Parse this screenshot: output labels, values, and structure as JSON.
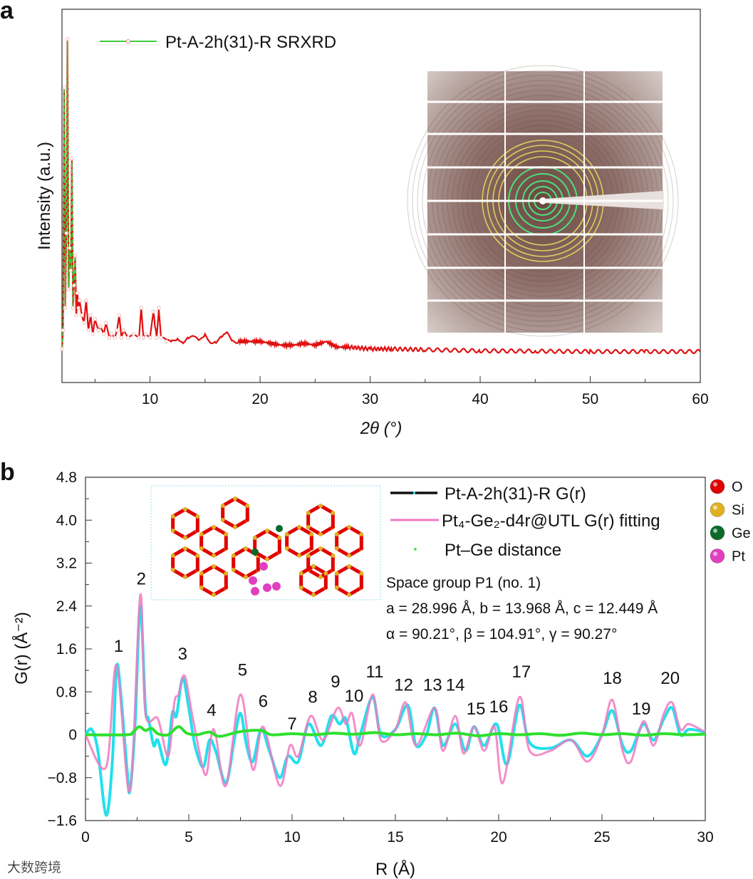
{
  "panels": {
    "a": "a",
    "b": "b"
  },
  "colors": {
    "xrd_line": "#e01010",
    "xrd_marker": "#f2b8b8",
    "xrd_legend": "#3ecf3e",
    "exp": "#22e0ee",
    "exp_legend": "#111111",
    "fit": "#f07ac0",
    "ptge": "#2ee02e",
    "O": "#e00000",
    "Si": "#e0b020",
    "Ge": "#0a6a2a",
    "Pt": "#e040c0"
  },
  "watermark": "大数跨境",
  "chart_data": [
    {
      "type": "line",
      "panel": "a",
      "title": "",
      "xlabel": "2θ (°)",
      "ylabel": "Intensity (a.u.)",
      "xlim": [
        2,
        60
      ],
      "ylim": [
        0,
        100
      ],
      "xticks": [
        10,
        20,
        30,
        40,
        50,
        60
      ],
      "xminor": [
        5,
        15,
        25,
        35,
        45,
        55
      ],
      "legend": {
        "label": "Pt-A-2h(31)-R SRXRD",
        "placement": "top-left"
      },
      "inset": "2D SRXRD detector image (top-right)",
      "series": [
        {
          "name": "Pt-A-2h(31)-R SRXRD",
          "x": [
            2.0,
            2.1,
            2.2,
            2.3,
            2.4,
            2.5,
            2.6,
            2.7,
            2.8,
            2.9,
            3.0,
            3.1,
            3.2,
            3.3,
            3.4,
            3.5,
            3.6,
            3.8,
            4.0,
            4.2,
            4.4,
            4.6,
            4.8,
            5.0,
            5.3,
            5.5,
            5.8,
            6.0,
            6.3,
            6.5,
            6.8,
            7.0,
            7.2,
            7.4,
            7.6,
            8.0,
            8.5,
            9.0,
            9.2,
            9.4,
            9.6,
            10.0,
            10.3,
            10.6,
            10.8,
            11.0,
            11.5,
            12,
            12.5,
            13,
            13.5,
            14,
            14.5,
            15,
            15.5,
            16,
            16.5,
            17,
            17.5,
            18,
            19,
            20,
            21,
            22,
            23,
            24,
            25,
            26,
            27,
            28,
            30,
            32,
            35,
            40,
            45,
            50,
            55,
            60
          ],
          "y": [
            9,
            14,
            79,
            20,
            40,
            92,
            25,
            36,
            30,
            60,
            20,
            26,
            34,
            18,
            24,
            20,
            22,
            18,
            16,
            22,
            14,
            18,
            13,
            17,
            14,
            15,
            13,
            16,
            12,
            13,
            12,
            14,
            18,
            12,
            14,
            12,
            13,
            12,
            20,
            12,
            13,
            12,
            19,
            12,
            20,
            12,
            11,
            11,
            12,
            11,
            12,
            12,
            11,
            13,
            11,
            11,
            12,
            13,
            11,
            11,
            11,
            11,
            10.5,
            10,
            10,
            10.5,
            10,
            11,
            9.5,
            9.5,
            9,
            9,
            8.8,
            8.5,
            8.4,
            8.3,
            8.3,
            8.3
          ]
        }
      ]
    },
    {
      "type": "line",
      "panel": "b",
      "xlabel": "R (Å)",
      "ylabel": "G(r) (Å⁻²)",
      "xlim": [
        0,
        30
      ],
      "ylim": [
        -1.6,
        4.8
      ],
      "xticks": [
        0,
        5,
        10,
        15,
        20,
        25,
        30
      ],
      "yticks": [
        -1.6,
        -0.8,
        0,
        0.8,
        1.6,
        2.4,
        3.2,
        4.0,
        4.8
      ],
      "ytick_labels": [
        "−1.6",
        "−0.8",
        "0",
        "0.8",
        "1.6",
        "2.4",
        "3.2",
        "4.0",
        "4.8"
      ],
      "legend": [
        {
          "label": "Pt-A-2h(31)-R G(r)",
          "style": "line"
        },
        {
          "label": "Pt₄-Ge₂-d4r@UTL G(r) fitting",
          "style": "line"
        },
        {
          "label": "Pt–Ge distance",
          "style": "dot"
        }
      ],
      "info": [
        "Space group P1 (no. 1)",
        "a = 28.996 Å, b = 13.968 Å, c = 12.449 Å",
        "α = 90.21°, β = 104.91°, γ = 90.27°"
      ],
      "atoms": [
        "O",
        "Si",
        "Ge",
        "Pt"
      ],
      "peak_labels": [
        {
          "text": "1",
          "x": 1.6,
          "y": 1.55
        },
        {
          "text": "2",
          "x": 2.7,
          "y": 2.8
        },
        {
          "text": "3",
          "x": 4.7,
          "y": 1.4
        },
        {
          "text": "4",
          "x": 6.1,
          "y": 0.35
        },
        {
          "text": "5",
          "x": 7.6,
          "y": 1.1
        },
        {
          "text": "6",
          "x": 8.6,
          "y": 0.52
        },
        {
          "text": "7",
          "x": 10.0,
          "y": 0.1
        },
        {
          "text": "8",
          "x": 11.0,
          "y": 0.6
        },
        {
          "text": "9",
          "x": 12.1,
          "y": 0.88
        },
        {
          "text": "10",
          "x": 13.0,
          "y": 0.62
        },
        {
          "text": "11",
          "x": 14.0,
          "y": 1.07
        },
        {
          "text": "12",
          "x": 15.4,
          "y": 0.82
        },
        {
          "text": "13",
          "x": 16.8,
          "y": 0.82
        },
        {
          "text": "14",
          "x": 17.9,
          "y": 0.82
        },
        {
          "text": "15",
          "x": 18.9,
          "y": 0.38
        },
        {
          "text": "16",
          "x": 20.0,
          "y": 0.42
        },
        {
          "text": "17",
          "x": 21.1,
          "y": 1.07
        },
        {
          "text": "18",
          "x": 25.5,
          "y": 0.95
        },
        {
          "text": "19",
          "x": 26.9,
          "y": 0.38
        },
        {
          "text": "20",
          "x": 28.3,
          "y": 0.95
        }
      ],
      "series": [
        {
          "name": "Pt-A-2h(31)-R G(r)",
          "x": [
            0,
            0.3,
            0.6,
            1.0,
            1.3,
            1.5,
            1.7,
            2.0,
            2.15,
            2.4,
            2.65,
            2.9,
            3.05,
            3.3,
            3.5,
            3.9,
            4.2,
            4.4,
            4.7,
            5.0,
            5.3,
            5.7,
            6.0,
            6.3,
            6.8,
            7.2,
            7.5,
            7.8,
            8.1,
            8.5,
            8.9,
            9.4,
            9.8,
            10.3,
            10.8,
            11.4,
            11.9,
            12.3,
            12.6,
            13.0,
            13.3,
            13.9,
            14.3,
            15.0,
            15.6,
            16.0,
            16.5,
            16.9,
            17.3,
            17.9,
            18.4,
            18.8,
            19.3,
            19.9,
            20.4,
            21.0,
            21.5,
            22.5,
            23.5,
            24.3,
            25.0,
            25.5,
            26.0,
            26.4,
            27.0,
            27.5,
            28.0,
            28.4,
            28.8,
            29.2,
            30
          ],
          "y": [
            0,
            0.1,
            -0.3,
            -1.5,
            -0.5,
            1.25,
            0.8,
            -0.6,
            -1.05,
            0.2,
            2.4,
            0.5,
            0.3,
            -0.2,
            -0.1,
            -0.55,
            0.4,
            0.35,
            1.05,
            0.5,
            -0.2,
            -0.6,
            -0.1,
            -0.3,
            -0.9,
            -0.1,
            0.4,
            -0.2,
            -0.5,
            0.1,
            -0.3,
            -0.8,
            -0.4,
            -0.5,
            0.2,
            -0.2,
            0.35,
            0.2,
            0.3,
            -0.35,
            0.0,
            0.7,
            0.0,
            0.1,
            0.55,
            -0.2,
            0.0,
            0.5,
            -0.2,
            0.2,
            -0.3,
            0.15,
            -0.2,
            0.2,
            -0.55,
            0.55,
            -0.15,
            -0.25,
            -0.1,
            -0.4,
            0.0,
            0.45,
            -0.2,
            -0.3,
            0.2,
            -0.1,
            0.3,
            0.5,
            0.0,
            0.1,
            0.05
          ]
        },
        {
          "name": "Pt₄-Ge₂-d4r@UTL G(r) fitting",
          "x": [
            0,
            1.0,
            1.5,
            2.15,
            2.65,
            2.9,
            3.5,
            4.0,
            4.3,
            4.5,
            4.8,
            5.2,
            5.8,
            6.1,
            6.3,
            6.8,
            7.5,
            8.1,
            8.6,
            9.4,
            9.9,
            10.3,
            10.9,
            11.5,
            12.2,
            12.6,
            12.9,
            13.3,
            13.9,
            14.3,
            15.0,
            15.5,
            16.0,
            16.9,
            17.3,
            17.9,
            18.3,
            18.8,
            19.3,
            19.8,
            20.2,
            21.0,
            21.5,
            22.5,
            23.5,
            24.3,
            25.0,
            25.5,
            26.0,
            26.4,
            27.0,
            27.5,
            28.0,
            28.4,
            28.8,
            29.2,
            30
          ],
          "y": [
            0,
            -0.6,
            1.3,
            -1.05,
            2.6,
            0.4,
            0.3,
            -0.4,
            0.6,
            0.75,
            1.1,
            0.3,
            -0.75,
            0.0,
            0.0,
            -0.95,
            0.75,
            -0.65,
            0.15,
            -0.95,
            -0.2,
            -0.4,
            0.35,
            -0.1,
            0.5,
            0.2,
            0.4,
            -0.2,
            0.75,
            -0.1,
            0.1,
            0.6,
            -0.2,
            0.5,
            -0.3,
            0.35,
            -0.35,
            0.15,
            -0.3,
            0.15,
            -0.9,
            0.7,
            -0.3,
            -0.3,
            -0.1,
            -0.5,
            0.0,
            0.65,
            -0.3,
            -0.5,
            0.25,
            -0.2,
            0.4,
            0.6,
            0.1,
            0.2,
            0.05
          ]
        },
        {
          "name": "Pt–Ge distance",
          "x": [
            0,
            2.0,
            2.3,
            2.6,
            2.9,
            3.2,
            3.5,
            4.0,
            4.5,
            4.9,
            5.4,
            6.0,
            6.5,
            7.5,
            8.5,
            9.0,
            10,
            11,
            12,
            13,
            14,
            15,
            16,
            17,
            18,
            19,
            20,
            21,
            22,
            23,
            24,
            25,
            26,
            27,
            28,
            29,
            30
          ],
          "y": [
            0,
            0,
            0.05,
            0.15,
            0.08,
            0.12,
            0.02,
            0.0,
            0.15,
            0.03,
            0.0,
            0.05,
            -0.03,
            0.06,
            0.08,
            0.0,
            0.02,
            0.0,
            0.03,
            0.01,
            0.04,
            0.0,
            0.02,
            0.0,
            0.03,
            -0.02,
            0.02,
            0.0,
            0.02,
            -0.01,
            0.03,
            0.0,
            0.02,
            -0.01,
            0.02,
            0.0,
            0.01
          ]
        }
      ]
    }
  ]
}
